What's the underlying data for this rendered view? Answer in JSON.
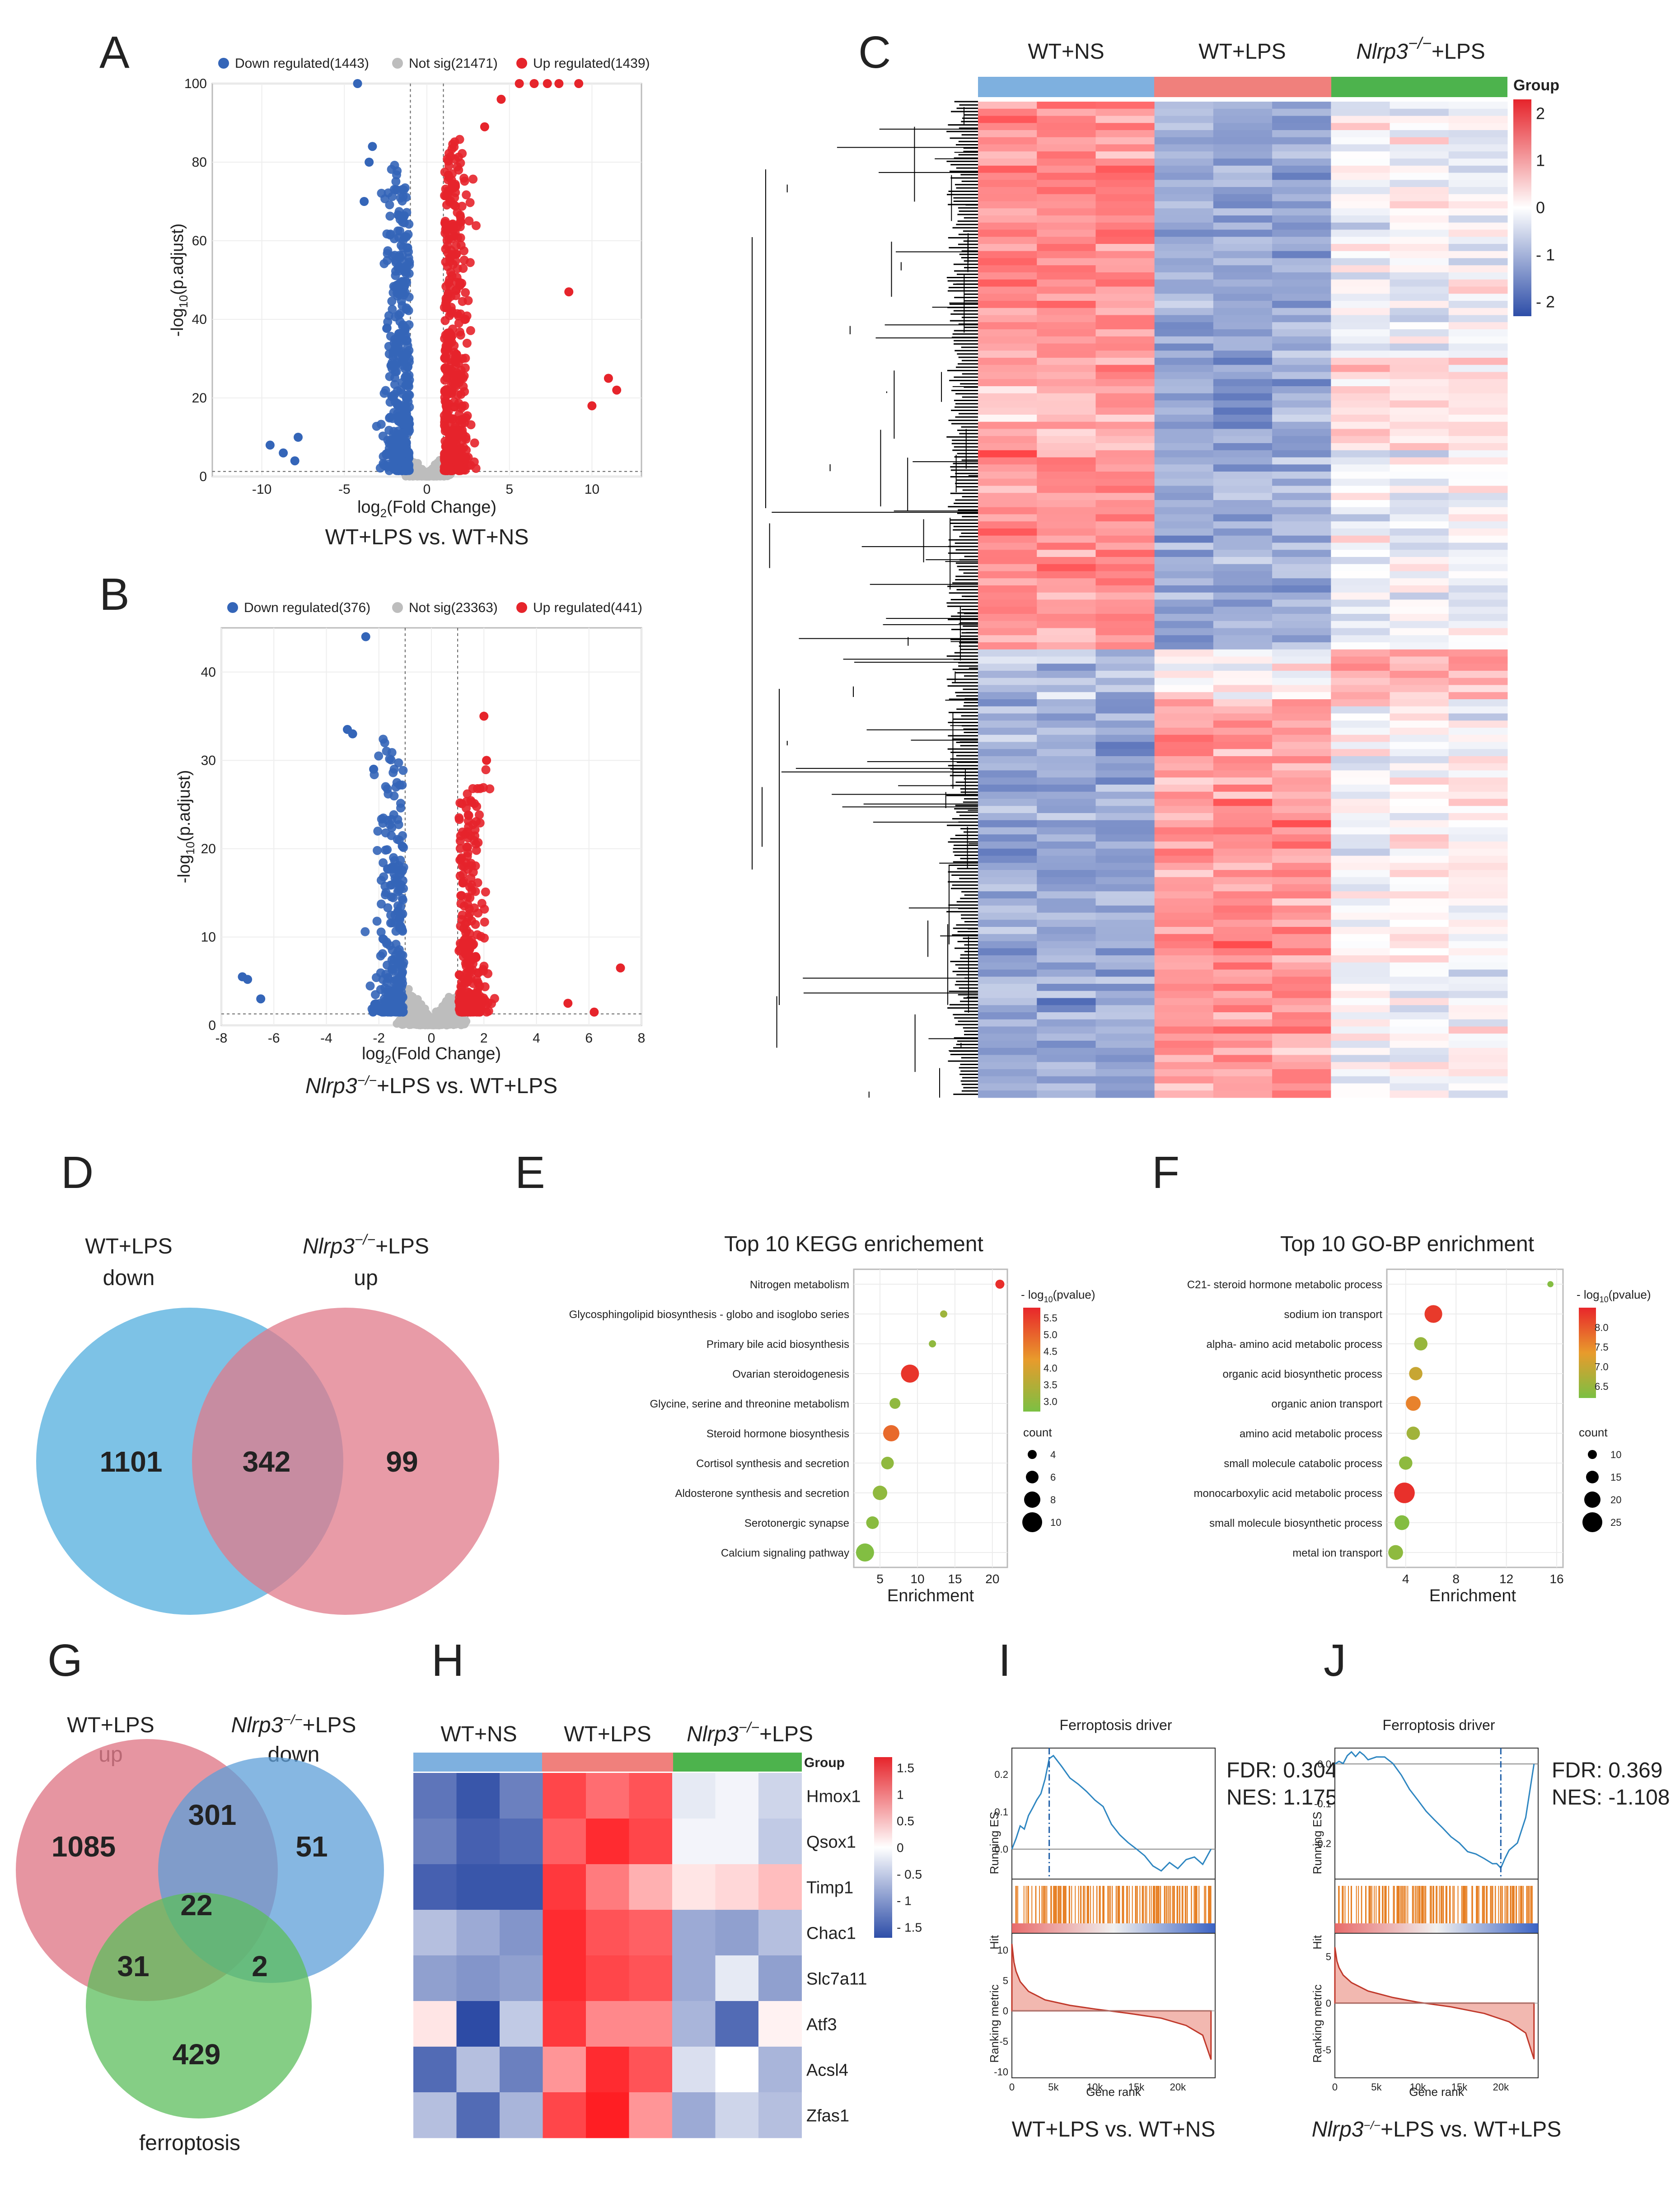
{
  "panels": {
    "A": {
      "label": "A"
    },
    "B": {
      "label": "B"
    },
    "C": {
      "label": "C"
    },
    "D": {
      "label": "D"
    },
    "E": {
      "label": "E"
    },
    "F": {
      "label": "F"
    },
    "G": {
      "label": "G"
    },
    "H": {
      "label": "H"
    },
    "I": {
      "label": "I"
    },
    "J": {
      "label": "J"
    }
  },
  "colors": {
    "down": "#3465b8",
    "up": "#e6242b",
    "ns": "#bdbdbd",
    "blue_venn": "#5db3e0",
    "pink_venn": "#e07a8a",
    "green_venn": "#5cbd5c",
    "gsea_line": "#2e86c1"
  },
  "chart_data": [
    {
      "id": "A",
      "type": "scatter",
      "legend": [
        "Down regulated(1443)",
        "Not sig(21471)",
        "Up regulated(1439)"
      ],
      "xlabel": "log2(Fold Change)",
      "xlabel_pre": "log",
      "xlabel_sub": "2",
      "xlabel_post": "(Fold Change)",
      "ylabel": "-log10(p.adjust)",
      "ylabel_pre": "-log",
      "ylabel_sub": "10",
      "ylabel_post": "(p.adjust)",
      "xlim": [
        -13,
        13
      ],
      "ylim": [
        0,
        100
      ],
      "xticks": [
        "-10",
        "-5",
        "0",
        "5",
        "10"
      ],
      "xtick_values": [
        -10,
        -5,
        0,
        5,
        10
      ],
      "yticks": [
        "0",
        "20",
        "40",
        "60",
        "80",
        "100"
      ],
      "ytick_values": [
        0,
        20,
        40,
        60,
        80,
        100
      ],
      "threshold_x": [
        -1,
        1
      ],
      "threshold_y": 1.3,
      "caption": "WT+LPS vs. WT+NS"
    },
    {
      "id": "B",
      "type": "scatter",
      "legend": [
        "Down regulated(376)",
        "Not sig(23363)",
        "Up regulated(441)"
      ],
      "xlabel": "log2(Fold Change)",
      "xlabel_pre": "log",
      "xlabel_sub": "2",
      "xlabel_post": "(Fold Change)",
      "ylabel": "-log10(p.adjust)",
      "ylabel_pre": "-log",
      "ylabel_sub": "10",
      "ylabel_post": "(p.adjust)",
      "xlim": [
        -8,
        8
      ],
      "ylim": [
        0,
        45
      ],
      "xticks": [
        "-8",
        "-6",
        "-4",
        "-2",
        "0",
        "2",
        "4",
        "6",
        "8"
      ],
      "xtick_values": [
        -8,
        -6,
        -4,
        -2,
        0,
        2,
        4,
        6,
        8
      ],
      "yticks": [
        "0",
        "10",
        "20",
        "30",
        "40"
      ],
      "ytick_values": [
        0,
        10,
        20,
        30,
        40
      ],
      "threshold_x": [
        -1,
        1
      ],
      "threshold_y": 1.3,
      "caption_italic": "Nlrp3",
      "caption_sup": "−/−",
      "caption_post": "+LPS vs. WT+LPS"
    },
    {
      "id": "C",
      "type": "heatmap",
      "groups": [
        "WT+NS",
        "WT+LPS",
        "+LPS"
      ],
      "group_italic": "Nlrp3",
      "group_sup": "−/−",
      "legend_title": "Group",
      "scale_ticks": [
        "2",
        "1",
        "0",
        "- 1",
        "- 2"
      ],
      "scale_values": [
        2,
        1,
        0,
        -1,
        -2
      ]
    },
    {
      "id": "D",
      "type": "venn",
      "set1": "WT+LPS",
      "set1_sub": "down",
      "set2_italic": "Nlrp3",
      "set2_sup": "−/−",
      "set2": "+LPS",
      "set2_sub": "up",
      "values": [
        "1101",
        "342",
        "99"
      ]
    },
    {
      "id": "E",
      "type": "scatter",
      "title": "Top 10 KEGG enrichement",
      "categories": [
        "Nitrogen metabolism",
        "Glycosphingolipid biosynthesis -  globo and isoglobo series",
        "Primary bile acid biosynthesis",
        "Ovarian steroidogenesis",
        "Glycine, serine and threonine metabolism",
        "Steroid hormone biosynthesis",
        "Cortisol synthesis and secretion",
        "Aldosterone synthesis and secretion",
        "Serotonergic synapse",
        "Calcium signaling pathway"
      ],
      "enrichment": [
        21,
        13.5,
        12,
        9,
        7,
        6.5,
        6,
        5,
        4,
        3
      ],
      "pvalue": [
        5.7,
        3.2,
        3.0,
        5.6,
        3.0,
        4.9,
        3.0,
        3.0,
        2.9,
        2.8
      ],
      "count": [
        4,
        3,
        3,
        9,
        5,
        8,
        6,
        7,
        6,
        9
      ],
      "xlabel": "Enrichment",
      "xticks": [
        "5",
        "10",
        "15",
        "20"
      ],
      "xtick_values": [
        5,
        10,
        15,
        20
      ],
      "xlim": [
        1.5,
        22
      ],
      "color_title_pre": "- log",
      "color_title_sub": "10",
      "color_title_post": "(pvalue)",
      "color_ticks": [
        "5.5",
        "5.0",
        "4.5",
        "4.0",
        "3.5",
        "3.0"
      ],
      "color_range": [
        2.7,
        5.8
      ],
      "size_title": "count",
      "size_ticks": [
        "4",
        "6",
        "8",
        "10"
      ],
      "size_values": [
        4,
        6,
        8,
        10
      ]
    },
    {
      "id": "F",
      "type": "scatter",
      "title": "Top 10 GO-BP enrichment",
      "categories": [
        "C21- steroid hormone metabolic process",
        "sodium ion transport",
        "alpha- amino acid metabolic process",
        "organic acid biosynthetic process",
        "organic anion transport",
        "amino acid metabolic process",
        "small molecule catabolic process",
        "monocarboxylic acid metabolic process",
        "small molecule biosynthetic process",
        "metal ion transport"
      ],
      "enrichment": [
        15.5,
        6.2,
        5.2,
        4.8,
        4.6,
        4.6,
        4.0,
        3.9,
        3.7,
        3.2
      ],
      "pvalue": [
        6.3,
        8.3,
        6.5,
        7.0,
        7.6,
        6.6,
        6.4,
        8.4,
        6.3,
        6.4
      ],
      "count": [
        6,
        22,
        16,
        16,
        18,
        16,
        16,
        26,
        18,
        18
      ],
      "xlabel": "Enrichment",
      "xticks": [
        "4",
        "8",
        "12",
        "16"
      ],
      "xtick_values": [
        4,
        8,
        12,
        16
      ],
      "xlim": [
        2.5,
        16.5
      ],
      "color_title_pre": "- log",
      "color_title_sub": "10",
      "color_title_post": "(pvalue)",
      "color_ticks": [
        "8.0",
        "7.5",
        "7.0",
        "6.5"
      ],
      "color_range": [
        6.2,
        8.5
      ],
      "size_title": "count",
      "size_ticks": [
        "10",
        "15",
        "20",
        "25"
      ],
      "size_values": [
        10,
        15,
        20,
        25
      ]
    },
    {
      "id": "G",
      "type": "venn",
      "set1": "WT+LPS",
      "set1_sub": "up",
      "set2_italic": "Nlrp3",
      "set2_sup": "−/−",
      "set2": "+LPS",
      "set2_sub": "down",
      "set3": "ferroptosis",
      "values": [
        "1085",
        "301",
        "51",
        "22",
        "31",
        "2",
        "429"
      ]
    },
    {
      "id": "H",
      "type": "heatmap",
      "groups": [
        "WT+NS",
        "WT+LPS",
        "+LPS"
      ],
      "group_italic": "Nlrp3",
      "group_sup": "−/−",
      "genes": [
        "Hmox1",
        "Qsox1",
        "Timp1",
        "Chac1",
        "Slc7a11",
        "Atf3",
        "Acsl4",
        "Zfas1"
      ],
      "values": [
        [
          -1.3,
          -1.6,
          -1.2,
          1.4,
          1.1,
          1.3,
          -0.2,
          -0.1,
          -0.4
        ],
        [
          -1.2,
          -1.5,
          -1.4,
          1.2,
          1.6,
          1.4,
          -0.1,
          -0.1,
          -0.5
        ],
        [
          -1.5,
          -1.6,
          -1.6,
          1.5,
          1.0,
          0.6,
          0.2,
          0.3,
          0.5
        ],
        [
          -0.6,
          -0.8,
          -1.0,
          1.6,
          1.3,
          1.2,
          -0.8,
          -0.9,
          -0.6
        ],
        [
          -0.9,
          -1.0,
          -0.9,
          1.6,
          1.4,
          1.3,
          -0.8,
          -0.2,
          -0.9
        ],
        [
          0.2,
          -1.7,
          -0.5,
          1.5,
          0.9,
          0.9,
          -0.7,
          -1.4,
          0.1
        ],
        [
          -1.4,
          -0.6,
          -1.2,
          0.8,
          1.6,
          1.3,
          -0.3,
          0.0,
          -0.7
        ],
        [
          -0.6,
          -1.4,
          -0.7,
          1.4,
          1.7,
          0.8,
          -0.8,
          -0.4,
          -0.6
        ]
      ],
      "legend_title": "Group",
      "scale_ticks": [
        "1.5",
        "1",
        "0.5",
        "0",
        "- 0.5",
        "- 1",
        "- 1.5"
      ],
      "scale_values": [
        1.5,
        1,
        0.5,
        0,
        -0.5,
        -1,
        -1.5
      ]
    },
    {
      "id": "I",
      "type": "line",
      "title": "Ferroptosis driver",
      "stats": [
        "FDR: 0.304",
        "NES: 1.175"
      ],
      "es_x": [
        0,
        500,
        1000,
        1500,
        2000,
        2500,
        3000,
        3500,
        4000,
        4500,
        5000,
        6000,
        7000,
        8000,
        9000,
        10000,
        11000,
        12000,
        13000,
        14000,
        15000,
        16000,
        17000,
        18000,
        19000,
        20000,
        21000,
        22000,
        23000,
        24000
      ],
      "es_y": [
        0,
        0.03,
        0.06,
        0.05,
        0.09,
        0.11,
        0.13,
        0.15,
        0.19,
        0.24,
        0.25,
        0.22,
        0.19,
        0.17,
        0.15,
        0.13,
        0.11,
        0.07,
        0.04,
        0.02,
        0.0,
        -0.02,
        -0.05,
        -0.06,
        -0.04,
        -0.05,
        -0.03,
        -0.02,
        -0.04,
        0.0
      ],
      "peak_x": 4500,
      "es_ticks": [
        "0.2",
        "0.1",
        "0.0"
      ],
      "es_tick_values": [
        0.2,
        0.1,
        0.0
      ],
      "es_lim": [
        -0.08,
        0.27
      ],
      "metric_ticks": [
        "10",
        "5",
        "0",
        "-5",
        "-10"
      ],
      "metric_tick_values": [
        10,
        5,
        0,
        -5,
        -10
      ],
      "metric_lim": [
        -11,
        12
      ],
      "metric_x": [
        0,
        250,
        500,
        1000,
        2000,
        4000,
        7000,
        10000,
        14000,
        18000,
        21000,
        23000,
        24000
      ],
      "metric_y": [
        11,
        8,
        6.5,
        4.8,
        3.2,
        1.8,
        0.9,
        0.3,
        -0.4,
        -1.2,
        -2.4,
        -4,
        -8
      ],
      "xticks": [
        "0",
        "5k",
        "10k",
        "15k",
        "20k"
      ],
      "xtick_values": [
        0,
        5000,
        10000,
        15000,
        20000
      ],
      "xlim": [
        0,
        24500
      ],
      "xlabel": "Gene rank",
      "ylabel_es": "Running ES",
      "ylabel_hit": "Hit",
      "ylabel_metric": "Ranking metric",
      "caption": "WT+LPS vs. WT+NS"
    },
    {
      "id": "J",
      "type": "line",
      "title": "Ferroptosis driver",
      "stats": [
        "FDR: 0.369",
        "NES: -1.108"
      ],
      "es_x": [
        0,
        500,
        1000,
        1500,
        2000,
        2500,
        3000,
        3500,
        4000,
        5000,
        6000,
        7000,
        8000,
        9000,
        10000,
        11000,
        12000,
        13000,
        14000,
        15000,
        16000,
        17000,
        18000,
        19000,
        19500,
        20000,
        20500,
        21000,
        22000,
        23000,
        24000
      ],
      "es_y": [
        0,
        0.01,
        0.0,
        0.02,
        0.03,
        0.02,
        0.03,
        0.02,
        0.01,
        0.02,
        0.02,
        0.0,
        -0.03,
        -0.06,
        -0.09,
        -0.12,
        -0.14,
        -0.16,
        -0.18,
        -0.2,
        -0.22,
        -0.23,
        -0.24,
        -0.25,
        -0.25,
        -0.26,
        -0.24,
        -0.22,
        -0.2,
        -0.14,
        0.0
      ],
      "peak_x": 20000,
      "es_ticks": [
        "0.0",
        "-0.1",
        "-0.2"
      ],
      "es_tick_values": [
        0.0,
        -0.1,
        -0.2
      ],
      "es_lim": [
        -0.29,
        0.04
      ],
      "metric_ticks": [
        "5",
        "0",
        "-5"
      ],
      "metric_tick_values": [
        5,
        0,
        -5
      ],
      "metric_lim": [
        -8,
        7
      ],
      "metric_x": [
        0,
        250,
        500,
        1000,
        2000,
        4000,
        7000,
        10000,
        14000,
        18000,
        21000,
        23000,
        24000
      ],
      "metric_y": [
        6,
        4.5,
        3.8,
        3,
        2.2,
        1.3,
        0.6,
        0.1,
        -0.4,
        -1.1,
        -2,
        -3.2,
        -6
      ],
      "xticks": [
        "0",
        "5k",
        "10k",
        "15k",
        "20k"
      ],
      "xtick_values": [
        0,
        5000,
        10000,
        15000,
        20000
      ],
      "xlim": [
        0,
        24500
      ],
      "xlabel": "Gene rank",
      "ylabel_es": "Running ES",
      "ylabel_hit": "Hit",
      "ylabel_metric": "Ranking metric",
      "caption_italic": "Nlrp3",
      "caption_sup": "−/−",
      "caption_post": "+LPS vs. WT+LPS"
    }
  ]
}
